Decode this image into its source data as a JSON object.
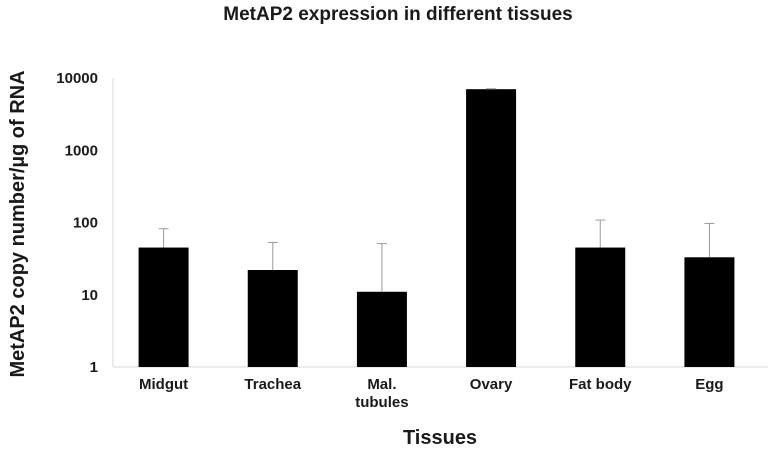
{
  "chart_data": {
    "type": "bar",
    "title": "MetAP2 expression in different tissues",
    "xlabel": "Tissues",
    "ylabel": "MetAP2 copy number/µg of RNA",
    "yscale": "log",
    "ylim": [
      1,
      10000
    ],
    "yticks": [
      "1",
      "10",
      "100",
      "1000",
      "10000"
    ],
    "categories": [
      [
        "Midgut"
      ],
      [
        "Trachea"
      ],
      [
        "Mal.",
        "tubules"
      ],
      [
        "Ovary"
      ],
      [
        "Fat body"
      ],
      [
        "Egg"
      ]
    ],
    "values": [
      45,
      22,
      11,
      7000,
      45,
      33
    ],
    "error_upper": [
      82,
      53,
      51,
      7100,
      108,
      97
    ],
    "bar_color": "#000000",
    "grid": false,
    "legend": "none"
  }
}
